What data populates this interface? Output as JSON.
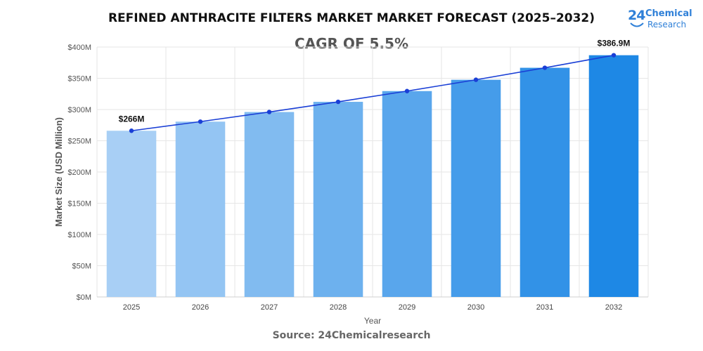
{
  "chart_data": {
    "type": "bar",
    "title": "REFINED ANTHRACITE FILTERS MARKET MARKET FORECAST (2025–2032)",
    "subtitle": "CAGR OF 5.5%",
    "xlabel": "Year",
    "ylabel": "Market Size (USD Million)",
    "categories": [
      "2025",
      "2026",
      "2027",
      "2028",
      "2029",
      "2030",
      "2031",
      "2032"
    ],
    "values": [
      266,
      280.6,
      296,
      312.3,
      329.5,
      347.6,
      366.8,
      386.9
    ],
    "ylim": [
      0,
      400
    ],
    "yticks": [
      0,
      50,
      100,
      150,
      200,
      250,
      300,
      350,
      400
    ],
    "ytick_labels": [
      "$0M",
      "$50M",
      "$100M",
      "$150M",
      "$200M",
      "$250M",
      "$300M",
      "$350M",
      "$400M"
    ],
    "data_labels": [
      {
        "category": "2025",
        "text": "$266M"
      },
      {
        "category": "2032",
        "text": "$386.9M"
      }
    ],
    "trend_line": true,
    "grid": true,
    "colors": {
      "bar_start": "#a8cff5",
      "bar_end": "#1e88e5",
      "line": "#1a3fd6",
      "grid": "#e6e6e6"
    }
  },
  "source": "Source: 24Chemicalresearch",
  "logo": {
    "number": "24",
    "line1": "Chemical",
    "line2": "Research"
  }
}
